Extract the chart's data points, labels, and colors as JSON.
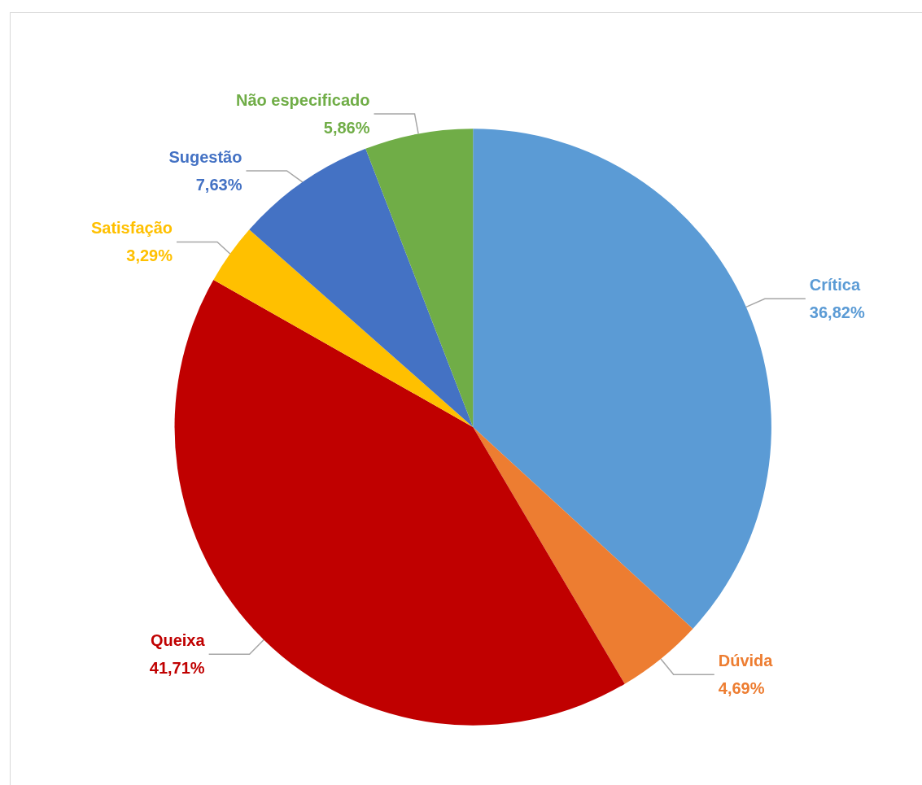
{
  "chart_data": {
    "type": "pie",
    "categories": [
      "Crítica",
      "Dúvida",
      "Queixa",
      "Satisfação",
      "Sugestão",
      "Não especificado"
    ],
    "values": [
      36.82,
      4.69,
      41.71,
      3.29,
      7.63,
      5.86
    ],
    "colors": [
      "#5b9bd5",
      "#ed7d31",
      "#c00000",
      "#ffc000",
      "#4472c4",
      "#70ad47"
    ],
    "value_labels": [
      "36,82%",
      "4,69%",
      "41,71%",
      "3,29%",
      "7,63%",
      "5,86%"
    ],
    "legend": false
  }
}
